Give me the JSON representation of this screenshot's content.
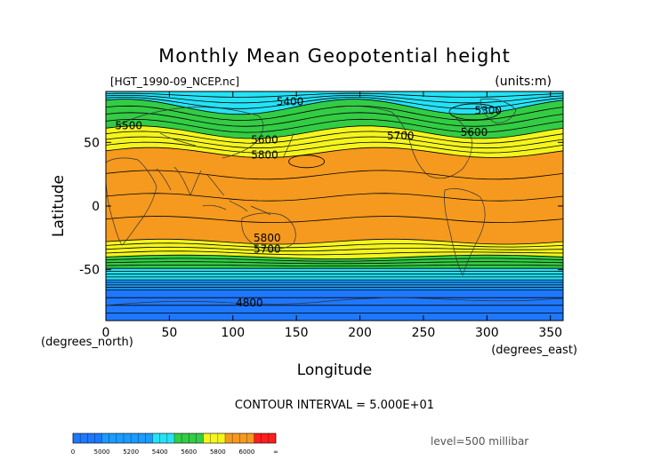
{
  "colors": {
    "band_0_4800": "#1e6eff",
    "band_4800_5000": "#1e78ff",
    "band_5000_5200": "#1a9bff",
    "band_5200_5400": "#25e2f5",
    "band_5400_5600": "#33cc44",
    "band_5600_5800": "#f5f51e",
    "band_5800_6000": "#f59a1e",
    "band_6000_inf": "#ff1e1e",
    "contour": "#000000",
    "coast": "#333333"
  },
  "chart_data": {
    "type": "contour",
    "title": "Monthly Mean Geopotential height",
    "file_label": "[HGT_1990-09_NCEP.nc]",
    "units_label": "(units:m)",
    "xlabel": "Longitude",
    "ylabel": "Latitude",
    "x_unit_label": "(degrees_east)",
    "y_unit_label": "(degrees_north)",
    "xlim": [
      0,
      360
    ],
    "ylim": [
      -90,
      90
    ],
    "x_ticks": [
      0,
      50,
      100,
      150,
      200,
      250,
      300,
      350
    ],
    "y_ticks": [
      50,
      0,
      -50
    ],
    "contour_interval_text": "CONTOUR INTERVAL = 5.000E+01",
    "level_text": "level=500 millibar",
    "contour_labels": [
      {
        "text": "5400",
        "lon": 145,
        "lat": 82
      },
      {
        "text": "5500",
        "lon": 18,
        "lat": 63
      },
      {
        "text": "5600",
        "lon": 125,
        "lat": 52
      },
      {
        "text": "5800",
        "lon": 125,
        "lat": 40
      },
      {
        "text": "5700",
        "lon": 232,
        "lat": 55
      },
      {
        "text": "5300",
        "lon": 301,
        "lat": 75
      },
      {
        "text": "5600",
        "lon": 290,
        "lat": 58
      },
      {
        "text": "5800",
        "lon": 127,
        "lat": -25
      },
      {
        "text": "5700",
        "lon": 127,
        "lat": -34
      },
      {
        "text": "4800",
        "lon": 113,
        "lat": -76
      }
    ],
    "colorbar": {
      "ticks": [
        "0",
        "5000",
        "5200",
        "5400",
        "5600",
        "5800",
        "6000",
        "∞"
      ]
    }
  }
}
